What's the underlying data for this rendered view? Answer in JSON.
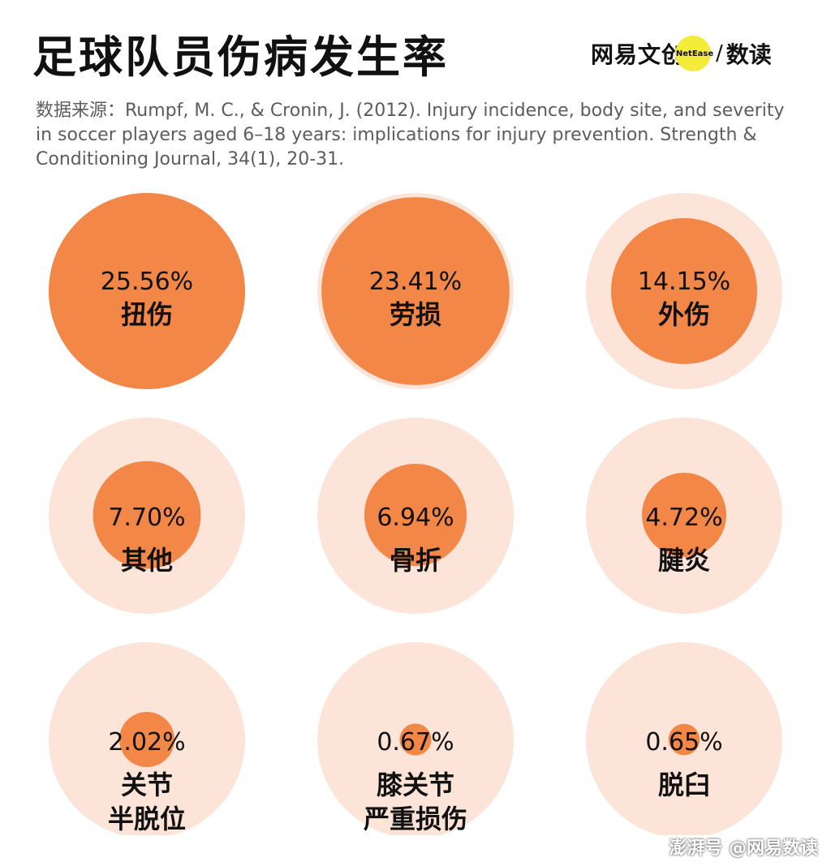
{
  "header": {
    "title": "足球队员伤病发生率",
    "logo_main": "网易文创",
    "logo_badge": "NetEase",
    "logo_slash": "/",
    "logo_sub": "数读"
  },
  "source": "数据来源：Rumpf, M. C., & Cronin, J. (2012). Injury incidence, body site, and severity in soccer players aged 6–18 years: implications for injury prevention. Strength & Conditioning Journal, 34(1), 20-31.",
  "watermark": "澎湃号 @网易数读",
  "colors": {
    "fill": "#f28748",
    "background_circle": "#fce4d8",
    "text": "#111111"
  },
  "chart_data": {
    "type": "proportional_circles",
    "unit": "%",
    "max_value": 25.56,
    "items": [
      {
        "value": 25.56,
        "value_label": "25.56%",
        "label_lines": [
          "扭伤"
        ]
      },
      {
        "value": 23.41,
        "value_label": "23.41%",
        "label_lines": [
          "劳损"
        ]
      },
      {
        "value": 14.15,
        "value_label": "14.15%",
        "label_lines": [
          "外伤"
        ]
      },
      {
        "value": 7.7,
        "value_label": "7.70%",
        "label_lines": [
          "其他"
        ]
      },
      {
        "value": 6.94,
        "value_label": "6.94%",
        "label_lines": [
          "骨折"
        ]
      },
      {
        "value": 4.72,
        "value_label": "4.72%",
        "label_lines": [
          "腱炎"
        ]
      },
      {
        "value": 2.02,
        "value_label": "2.02%",
        "label_lines": [
          "关节",
          "半脱位"
        ]
      },
      {
        "value": 0.67,
        "value_label": "0.67%",
        "label_lines": [
          "膝关节",
          "严重损伤"
        ]
      },
      {
        "value": 0.65,
        "value_label": "0.65%",
        "label_lines": [
          "脱臼"
        ]
      }
    ]
  }
}
